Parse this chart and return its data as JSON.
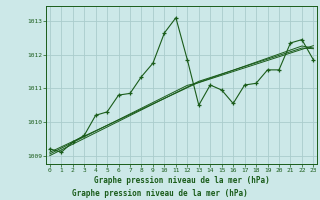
{
  "xlabel": "Graphe pression niveau de la mer (hPa)",
  "background_color": "#cce8e8",
  "grid_color": "#aacccc",
  "line_color": "#1a5c1a",
  "x_values": [
    0,
    1,
    2,
    3,
    4,
    5,
    6,
    7,
    8,
    9,
    10,
    11,
    12,
    13,
    14,
    15,
    16,
    17,
    18,
    19,
    20,
    21,
    22,
    23
  ],
  "y_main": [
    1009.2,
    1009.1,
    1009.4,
    1009.6,
    1010.2,
    1010.3,
    1010.8,
    1010.85,
    1011.35,
    1011.75,
    1012.65,
    1013.1,
    1011.85,
    1010.5,
    1011.1,
    1010.95,
    1010.55,
    1011.1,
    1011.15,
    1011.55,
    1011.55,
    1012.35,
    1012.45,
    1011.85
  ],
  "y_trend1": [
    1009.05,
    1009.22,
    1009.39,
    1009.56,
    1009.73,
    1009.9,
    1010.07,
    1010.24,
    1010.41,
    1010.58,
    1010.75,
    1010.92,
    1011.09,
    1011.17,
    1011.28,
    1011.39,
    1011.5,
    1011.61,
    1011.72,
    1011.83,
    1011.94,
    1012.05,
    1012.16,
    1012.27
  ],
  "y_trend2": [
    1009.1,
    1009.26,
    1009.42,
    1009.58,
    1009.74,
    1009.9,
    1010.06,
    1010.22,
    1010.38,
    1010.54,
    1010.7,
    1010.86,
    1011.02,
    1011.18,
    1011.3,
    1011.42,
    1011.54,
    1011.66,
    1011.78,
    1011.9,
    1012.02,
    1012.14,
    1012.26,
    1012.2
  ],
  "y_trend3": [
    1009.0,
    1009.17,
    1009.34,
    1009.51,
    1009.68,
    1009.85,
    1010.02,
    1010.19,
    1010.36,
    1010.53,
    1010.7,
    1010.87,
    1011.04,
    1011.21,
    1011.32,
    1011.43,
    1011.54,
    1011.65,
    1011.76,
    1011.87,
    1011.98,
    1012.09,
    1012.2,
    1012.18
  ],
  "ylim": [
    1008.75,
    1013.45
  ],
  "xlim": [
    -0.3,
    23.3
  ],
  "yticks": [
    1009,
    1010,
    1011,
    1012,
    1013
  ],
  "xticks": [
    0,
    1,
    2,
    3,
    4,
    5,
    6,
    7,
    8,
    9,
    10,
    11,
    12,
    13,
    14,
    15,
    16,
    17,
    18,
    19,
    20,
    21,
    22,
    23
  ]
}
